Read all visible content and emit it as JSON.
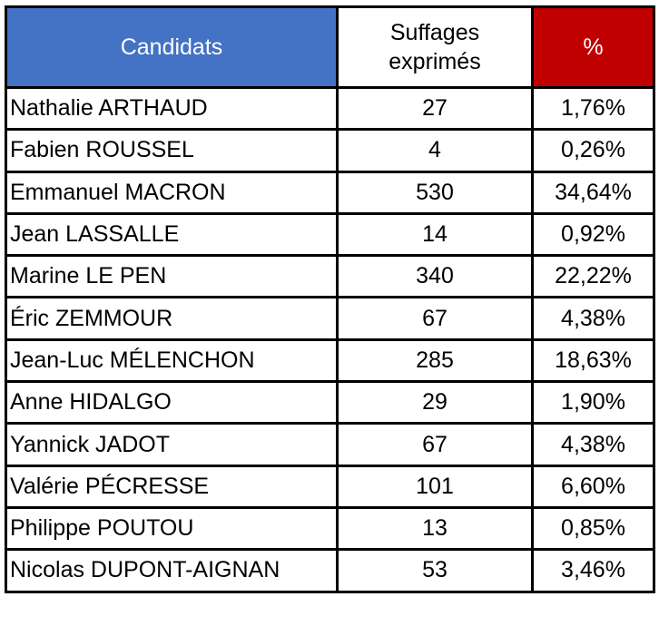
{
  "table": {
    "header": [
      "Candidats",
      "Suffages exprimés",
      "%"
    ],
    "rows": [
      [
        "Nathalie ARTHAUD",
        "27",
        "1,76%"
      ],
      [
        "Fabien ROUSSEL",
        "4",
        "0,26%"
      ],
      [
        "Emmanuel MACRON",
        "530",
        "34,64%"
      ],
      [
        "Jean LASSALLE",
        "14",
        "0,92%"
      ],
      [
        "Marine LE PEN",
        "340",
        "22,22%"
      ],
      [
        "Éric ZEMMOUR",
        "67",
        "4,38%"
      ],
      [
        "Jean-Luc MÉLENCHON",
        "285",
        "18,63%"
      ],
      [
        "Anne HIDALGO",
        "29",
        "1,90%"
      ],
      [
        "Yannick JADOT",
        "67",
        "4,38%"
      ],
      [
        "Valérie PÉCRESSE",
        "101",
        "6,60%"
      ],
      [
        "Philippe POUTOU",
        "13",
        "0,85%"
      ],
      [
        "Nicolas DUPONT-AIGNAN",
        "53",
        "3,46%"
      ]
    ]
  }
}
